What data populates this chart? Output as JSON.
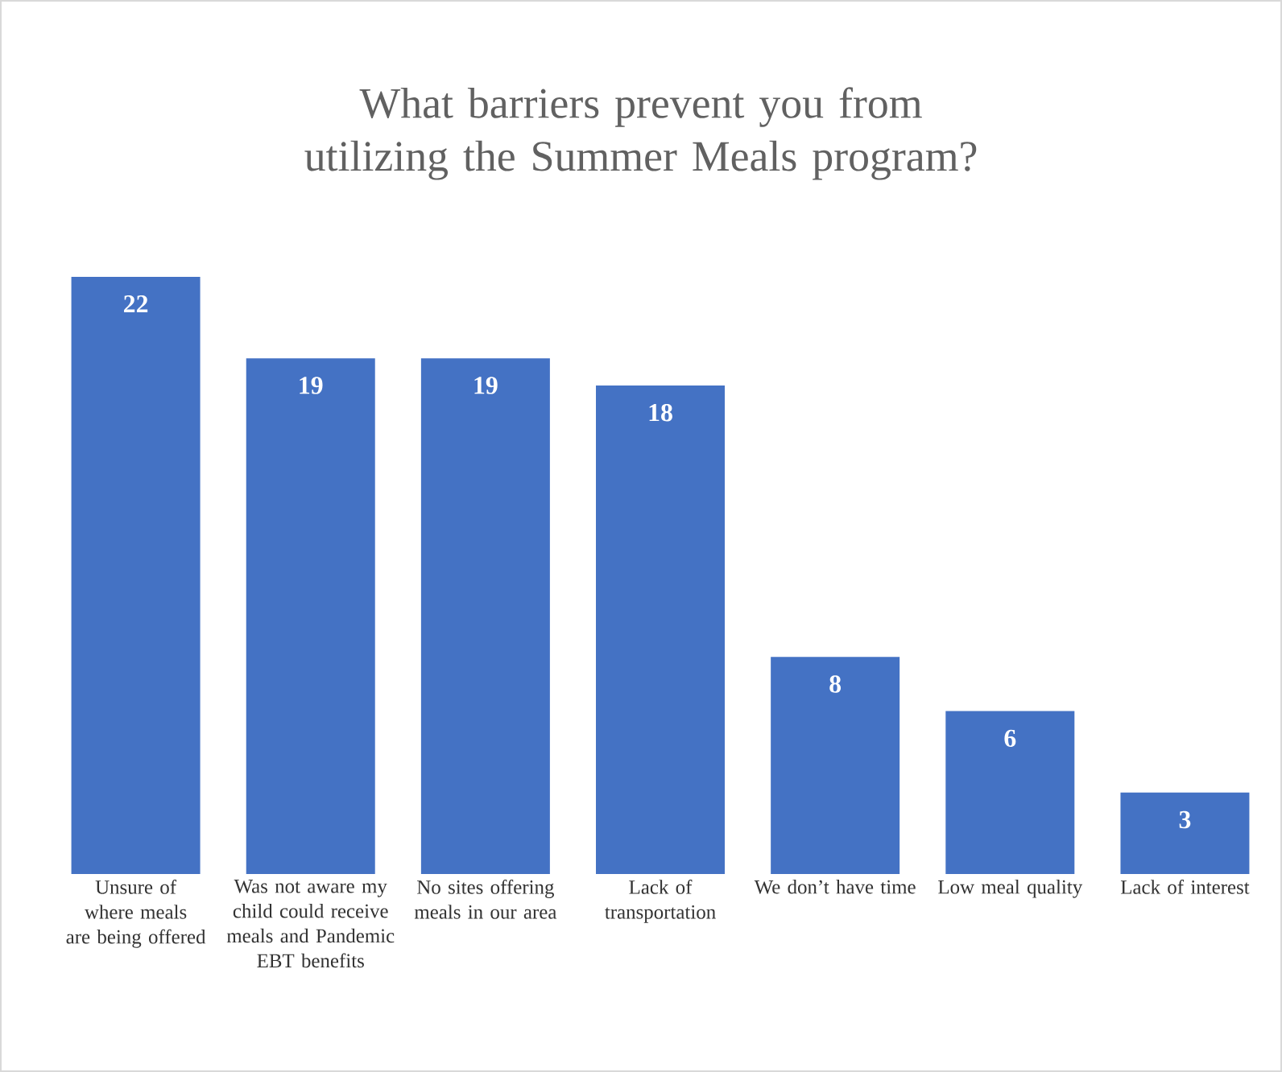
{
  "chart_data": {
    "type": "bar",
    "title": "What barriers prevent you from utilizing the Summer Meals program?",
    "categories": [
      "Unsure of where meals are being offered",
      "Was not aware my child could receive meals and Pandemic EBT benefits",
      "No sites offering meals in our area",
      "Lack of transportation",
      "We don’t have time",
      "Low meal quality",
      "Lack of interest"
    ],
    "values": [
      22,
      19,
      19,
      18,
      8,
      6,
      3
    ],
    "color": "#4472c4",
    "data_labels": true
  }
}
